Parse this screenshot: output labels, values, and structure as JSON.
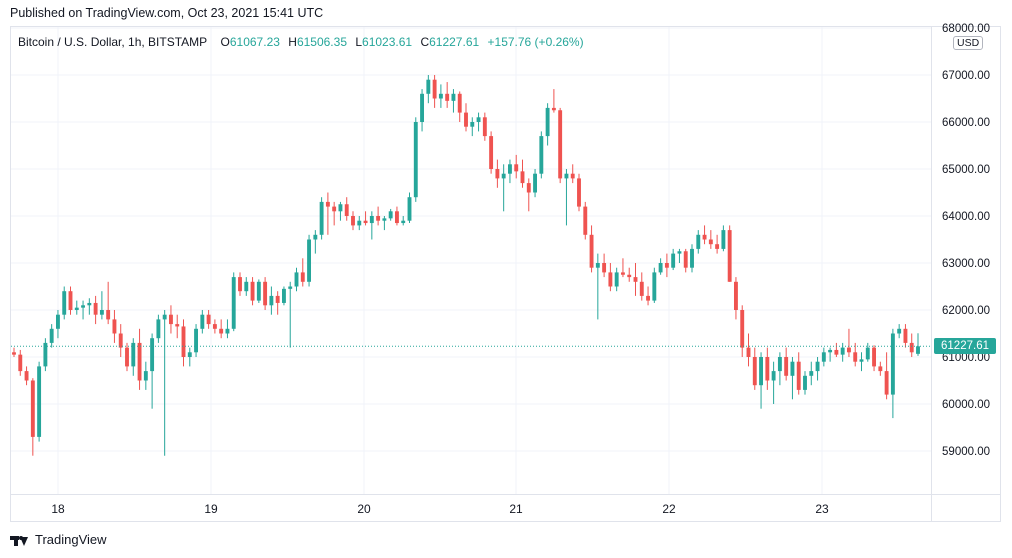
{
  "header": {
    "published": "Published on TradingView.com, Oct 23, 2021 15:41 UTC"
  },
  "legend": {
    "symbol": "Bitcoin / U.S. Dollar, 1h, BITSTAMP",
    "o_label": "O",
    "o_value": "61067.23",
    "h_label": "H",
    "h_value": "61506.35",
    "l_label": "L",
    "l_value": "61023.61",
    "c_label": "C",
    "c_value": "61227.61",
    "change": "+157.76 (+0.26%)"
  },
  "currency_badge": "USD",
  "last_price_label": "61227.61",
  "footer": {
    "brand": "TradingView"
  },
  "colors": {
    "up": "#26a69a",
    "down": "#ef5350",
    "grid": "#f0f3fa",
    "text": "#131722"
  },
  "chart_data": {
    "type": "candlestick",
    "ylim": [
      58500,
      68000
    ],
    "y_ticks": [
      "68000.00",
      "67000.00",
      "66000.00",
      "65000.00",
      "64000.00",
      "63000.00",
      "62000.00",
      "61000.00",
      "60000.00",
      "59000.00"
    ],
    "x_tick_labels": [
      "18",
      "19",
      "20",
      "21",
      "22",
      "23"
    ],
    "last_price": 61227.61,
    "grid": true,
    "candles": [
      [
        61100,
        61200,
        61000,
        61050
      ],
      [
        61050,
        61150,
        60600,
        60700
      ],
      [
        60700,
        60800,
        60400,
        60500
      ],
      [
        60500,
        60550,
        58900,
        59300
      ],
      [
        59300,
        60900,
        59200,
        60800
      ],
      [
        60800,
        61400,
        60700,
        61300
      ],
      [
        61300,
        61700,
        61200,
        61600
      ],
      [
        61600,
        62000,
        61400,
        61900
      ],
      [
        61900,
        62500,
        61800,
        62400
      ],
      [
        62400,
        62500,
        61900,
        62000
      ],
      [
        62000,
        62200,
        61900,
        62050
      ],
      [
        62050,
        62200,
        61800,
        62100
      ],
      [
        62100,
        62250,
        61900,
        62150
      ],
      [
        62150,
        62300,
        61700,
        61900
      ],
      [
        61900,
        62400,
        61800,
        62000
      ],
      [
        62000,
        62600,
        61700,
        61800
      ],
      [
        61800,
        62000,
        61300,
        61500
      ],
      [
        61500,
        61700,
        61000,
        61200
      ],
      [
        61200,
        61300,
        60700,
        60800
      ],
      [
        60800,
        61400,
        60600,
        61300
      ],
      [
        61300,
        61600,
        60300,
        60500
      ],
      [
        60500,
        60900,
        60300,
        60700
      ],
      [
        60700,
        61500,
        59900,
        61400
      ],
      [
        61400,
        61900,
        61300,
        61800
      ],
      [
        61800,
        62000,
        58900,
        61900
      ],
      [
        61900,
        62100,
        61500,
        61700
      ],
      [
        61700,
        61900,
        61400,
        61650
      ],
      [
        61650,
        61800,
        60800,
        61000
      ],
      [
        61000,
        61200,
        60800,
        61100
      ],
      [
        61100,
        61700,
        61000,
        61600
      ],
      [
        61600,
        62000,
        61500,
        61900
      ],
      [
        61900,
        62000,
        61600,
        61700
      ],
      [
        61700,
        61800,
        61500,
        61600
      ],
      [
        61600,
        61800,
        61400,
        61500
      ],
      [
        61500,
        61800,
        61400,
        61600
      ],
      [
        61600,
        62800,
        61550,
        62700
      ],
      [
        62700,
        62800,
        62300,
        62400
      ],
      [
        62400,
        62700,
        62300,
        62600
      ],
      [
        62600,
        62700,
        62100,
        62200
      ],
      [
        62200,
        62650,
        62150,
        62600
      ],
      [
        62600,
        62700,
        62000,
        62100
      ],
      [
        62100,
        62500,
        61900,
        62300
      ],
      [
        62300,
        62400,
        61900,
        62150
      ],
      [
        62150,
        62500,
        62100,
        62450
      ],
      [
        62450,
        62600,
        61200,
        62500
      ],
      [
        62500,
        62900,
        62400,
        62800
      ],
      [
        62800,
        63100,
        62500,
        62600
      ],
      [
        62600,
        63600,
        62500,
        63500
      ],
      [
        63500,
        63700,
        63200,
        63600
      ],
      [
        63600,
        64400,
        63500,
        64300
      ],
      [
        64300,
        64500,
        63600,
        64200
      ],
      [
        64200,
        64300,
        63800,
        64100
      ],
      [
        64100,
        64300,
        63900,
        64250
      ],
      [
        64250,
        64400,
        63900,
        64000
      ],
      [
        64000,
        64100,
        63700,
        63800
      ],
      [
        63800,
        64000,
        63700,
        63900
      ],
      [
        63900,
        64100,
        63800,
        63850
      ],
      [
        63850,
        64100,
        63500,
        64000
      ],
      [
        64000,
        64200,
        63800,
        63900
      ],
      [
        63900,
        64000,
        63700,
        63950
      ],
      [
        63950,
        64150,
        63900,
        64100
      ],
      [
        64100,
        64200,
        63800,
        63850
      ],
      [
        63850,
        64000,
        63800,
        63900
      ],
      [
        63900,
        64500,
        63850,
        64400
      ],
      [
        64400,
        66100,
        64300,
        66000
      ],
      [
        66000,
        66700,
        65800,
        66600
      ],
      [
        66600,
        67000,
        66400,
        66900
      ],
      [
        66900,
        67000,
        66300,
        66500
      ],
      [
        66500,
        66800,
        66300,
        66600
      ],
      [
        66600,
        66850,
        66300,
        66450
      ],
      [
        66450,
        66700,
        66200,
        66600
      ],
      [
        66600,
        66650,
        66000,
        66200
      ],
      [
        66200,
        66400,
        65800,
        65900
      ],
      [
        65900,
        66100,
        65700,
        66000
      ],
      [
        66000,
        66200,
        65800,
        66100
      ],
      [
        66100,
        66200,
        65600,
        65700
      ],
      [
        65700,
        65800,
        64900,
        65000
      ],
      [
        65000,
        65200,
        64600,
        64800
      ],
      [
        64800,
        65100,
        64100,
        64900
      ],
      [
        64900,
        65200,
        64700,
        65100
      ],
      [
        65100,
        65300,
        64800,
        64950
      ],
      [
        64950,
        65200,
        64600,
        64700
      ],
      [
        64700,
        64800,
        64100,
        64500
      ],
      [
        64500,
        65000,
        64400,
        64900
      ],
      [
        64900,
        65800,
        64800,
        65700
      ],
      [
        65700,
        66400,
        65500,
        66300
      ],
      [
        66300,
        66700,
        66200,
        66250
      ],
      [
        66250,
        66300,
        64700,
        64800
      ],
      [
        64800,
        65000,
        63800,
        64900
      ],
      [
        64900,
        65100,
        64700,
        64800
      ],
      [
        64800,
        64900,
        64100,
        64200
      ],
      [
        64200,
        64300,
        63500,
        63600
      ],
      [
        63600,
        63800,
        62800,
        62900
      ],
      [
        62900,
        63200,
        61800,
        63000
      ],
      [
        63000,
        63200,
        62700,
        62800
      ],
      [
        62800,
        63000,
        62400,
        62500
      ],
      [
        62500,
        62900,
        62400,
        62800
      ],
      [
        62800,
        63100,
        62700,
        62750
      ],
      [
        62750,
        62900,
        62600,
        62700
      ],
      [
        62700,
        63000,
        62300,
        62600
      ],
      [
        62600,
        62800,
        62200,
        62300
      ],
      [
        62300,
        62500,
        62100,
        62200
      ],
      [
        62200,
        62900,
        62150,
        62800
      ],
      [
        62800,
        63100,
        62750,
        63000
      ],
      [
        63000,
        63200,
        62700,
        62900
      ],
      [
        62900,
        63300,
        62850,
        63200
      ],
      [
        63200,
        63300,
        63000,
        63250
      ],
      [
        63250,
        63300,
        62800,
        62900
      ],
      [
        62900,
        63400,
        62800,
        63300
      ],
      [
        63300,
        63700,
        63200,
        63600
      ],
      [
        63600,
        63800,
        63400,
        63500
      ],
      [
        63500,
        63700,
        63300,
        63400
      ],
      [
        63400,
        63600,
        63200,
        63300
      ],
      [
        63300,
        63800,
        63250,
        63700
      ],
      [
        63700,
        63800,
        62600,
        62600
      ],
      [
        62600,
        62700,
        61800,
        62000
      ],
      [
        62000,
        62100,
        61000,
        61200
      ],
      [
        61200,
        61500,
        60800,
        61000
      ],
      [
        61000,
        61200,
        60300,
        60400
      ],
      [
        60400,
        61100,
        59900,
        61000
      ],
      [
        61000,
        61200,
        60300,
        60500
      ],
      [
        60500,
        60900,
        60000,
        60700
      ],
      [
        60700,
        61100,
        60400,
        61000
      ],
      [
        61000,
        61200,
        60500,
        60600
      ],
      [
        60600,
        61000,
        60100,
        60900
      ],
      [
        60900,
        61100,
        60200,
        60300
      ],
      [
        60300,
        60700,
        60200,
        60600
      ],
      [
        60600,
        60900,
        60400,
        60700
      ],
      [
        60700,
        61000,
        60500,
        60900
      ],
      [
        60900,
        61200,
        60800,
        61100
      ],
      [
        61100,
        61200,
        60900,
        61150
      ],
      [
        61150,
        61300,
        61000,
        61050
      ],
      [
        61050,
        61300,
        60900,
        61200
      ],
      [
        61200,
        61600,
        61000,
        61100
      ],
      [
        61100,
        61300,
        60800,
        60900
      ],
      [
        60900,
        61100,
        60700,
        60950
      ],
      [
        60950,
        61300,
        60900,
        61200
      ],
      [
        61200,
        61250,
        60700,
        60800
      ],
      [
        60800,
        60900,
        60600,
        60700
      ],
      [
        60700,
        61100,
        60100,
        60200
      ],
      [
        60200,
        61600,
        59700,
        61500
      ],
      [
        61500,
        61700,
        61400,
        61600
      ],
      [
        61600,
        61700,
        61200,
        61300
      ],
      [
        61300,
        61500,
        61000,
        61100
      ],
      [
        61067.23,
        61506.35,
        61023.61,
        61227.61
      ]
    ]
  }
}
